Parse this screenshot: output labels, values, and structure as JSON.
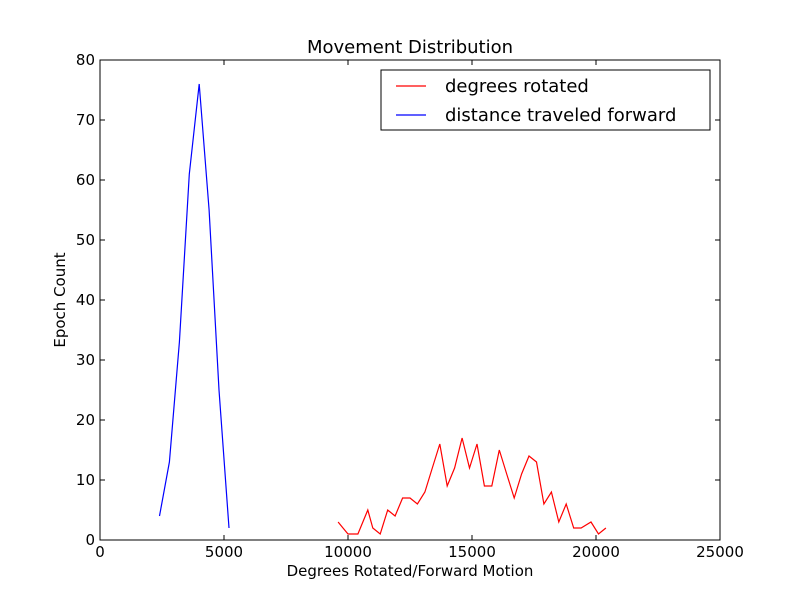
{
  "chart_data": {
    "type": "line",
    "title": "Movement Distribution",
    "xlabel": "Degrees Rotated/Forward Motion",
    "ylabel": "Epoch Count",
    "xlim": [
      0,
      25000
    ],
    "ylim": [
      0,
      80
    ],
    "xticks": [
      0,
      5000,
      10000,
      15000,
      20000,
      25000
    ],
    "yticks": [
      0,
      10,
      20,
      30,
      40,
      50,
      60,
      70,
      80
    ],
    "grid": false,
    "legend_position": "top-right",
    "series": [
      {
        "name": "degrees rotated",
        "color": "#ff0000",
        "x": [
          9600,
          9800,
          10000,
          10200,
          10400,
          10800,
          11000,
          11300,
          11600,
          11900,
          12200,
          12500,
          12800,
          13100,
          13400,
          13700,
          14000,
          14300,
          14600,
          14900,
          15200,
          15500,
          15800,
          16100,
          16400,
          16700,
          17000,
          17300,
          17600,
          17900,
          18200,
          18500,
          18800,
          19100,
          19400,
          19800,
          20100,
          20400
        ],
        "y": [
          3,
          2,
          1,
          1,
          1,
          5,
          2,
          1,
          5,
          4,
          7,
          7,
          6,
          8,
          12,
          16,
          9,
          12,
          17,
          12,
          16,
          9,
          9,
          15,
          11,
          7,
          11,
          14,
          13,
          6,
          8,
          3,
          6,
          2,
          2,
          3,
          1,
          2
        ]
      },
      {
        "name": "distance traveled forward",
        "color": "#0000ff",
        "x": [
          2400,
          2800,
          3200,
          3600,
          4000,
          4400,
          4800,
          5200
        ],
        "y": [
          4,
          13,
          33,
          61,
          76,
          55,
          25,
          2
        ]
      }
    ]
  }
}
